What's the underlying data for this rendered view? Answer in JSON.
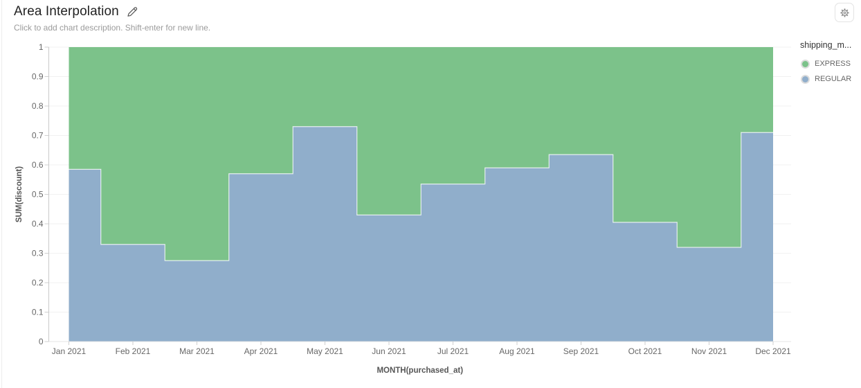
{
  "header": {
    "title": "Area Interpolation",
    "description_placeholder": "Click to add chart description. Shift-enter for new line."
  },
  "toolbar": {
    "settings_icon": "gear-icon"
  },
  "legend": {
    "title": "shipping_m...",
    "items": [
      {
        "label": "EXPRESS",
        "color": "#7cc28a"
      },
      {
        "label": "REGULAR",
        "color": "#90aecb"
      }
    ]
  },
  "chart_data": {
    "type": "area",
    "stacking": "normalized",
    "interpolation": "step-middle",
    "title": "Area Interpolation",
    "xlabel": "MONTH(purchased_at)",
    "ylabel": "SUM(discount)",
    "ylim": [
      0,
      1
    ],
    "grid": true,
    "legend_position": "right",
    "x": [
      "Jan 2021",
      "Feb 2021",
      "Mar 2021",
      "Apr 2021",
      "May 2021",
      "Jun 2021",
      "Jul 2021",
      "Aug 2021",
      "Sep 2021",
      "Oct 2021",
      "Nov 2021",
      "Dec 2021"
    ],
    "yticks": [
      "0",
      "0.1",
      "0.2",
      "0.3",
      "0.4",
      "0.5",
      "0.6",
      "0.7",
      "0.8",
      "0.9",
      "1"
    ],
    "series": [
      {
        "name": "REGULAR",
        "color": "#90aecb",
        "values": [
          0.585,
          0.33,
          0.275,
          0.57,
          0.73,
          0.43,
          0.535,
          0.59,
          0.635,
          0.405,
          0.32,
          0.71
        ]
      },
      {
        "name": "EXPRESS",
        "color": "#7cc28a",
        "values": [
          0.415,
          0.67,
          0.725,
          0.43,
          0.27,
          0.57,
          0.465,
          0.41,
          0.365,
          0.595,
          0.68,
          0.29
        ]
      }
    ],
    "note": "values are stacked shares summing to 1.0; REGULAR is the bottom band, EXPRESS fills to 1.0"
  }
}
